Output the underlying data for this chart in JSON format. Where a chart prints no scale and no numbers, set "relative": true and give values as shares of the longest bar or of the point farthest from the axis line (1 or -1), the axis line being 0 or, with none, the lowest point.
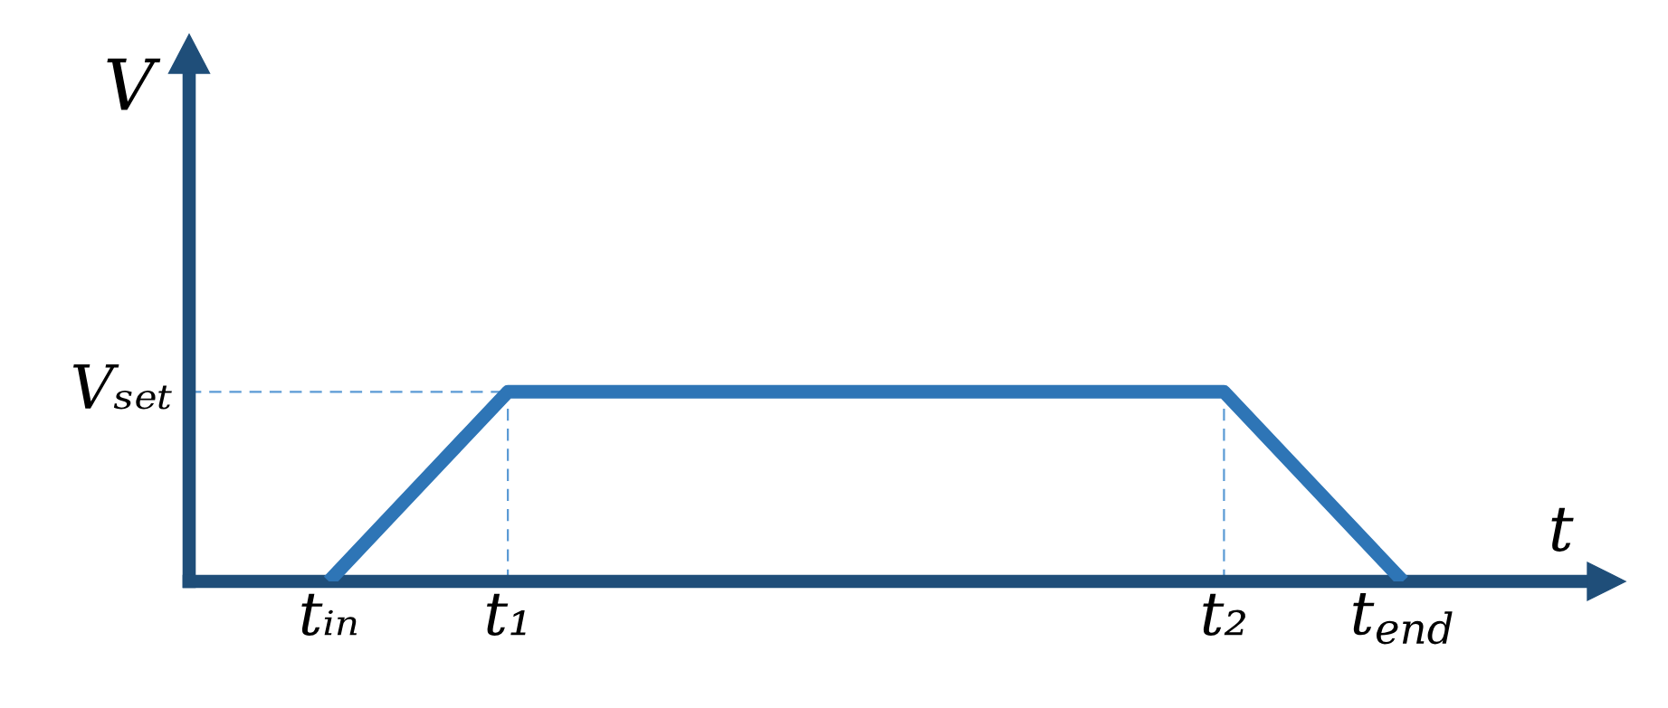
{
  "chart_data": {
    "type": "line",
    "relative": true,
    "xlabel": "t",
    "ylabel": "V",
    "categories": [
      "tᵢₙ",
      "t₁",
      null,
      null,
      null,
      "t₂",
      "t$_{end}$"
    ],
    "series": [
      {
        "color": "#2e75b6",
        "values": [
          0,
          1,
          1,
          1,
          1,
          1,
          0
        ]
      }
    ],
    "ref_lines": [
      {
        "axis": "y",
        "value": 1,
        "label": "Vₛₑₜ",
        "color": "#5b9bd5",
        "line_style": "dashed"
      },
      {
        "axis": "x",
        "value": "t₁",
        "color": "#5b9bd5",
        "line_style": "dashed"
      },
      {
        "axis": "x",
        "value": "t₂",
        "color": "#5b9bd5",
        "line_style": "dashed"
      }
    ],
    "line_style": "solid"
  }
}
